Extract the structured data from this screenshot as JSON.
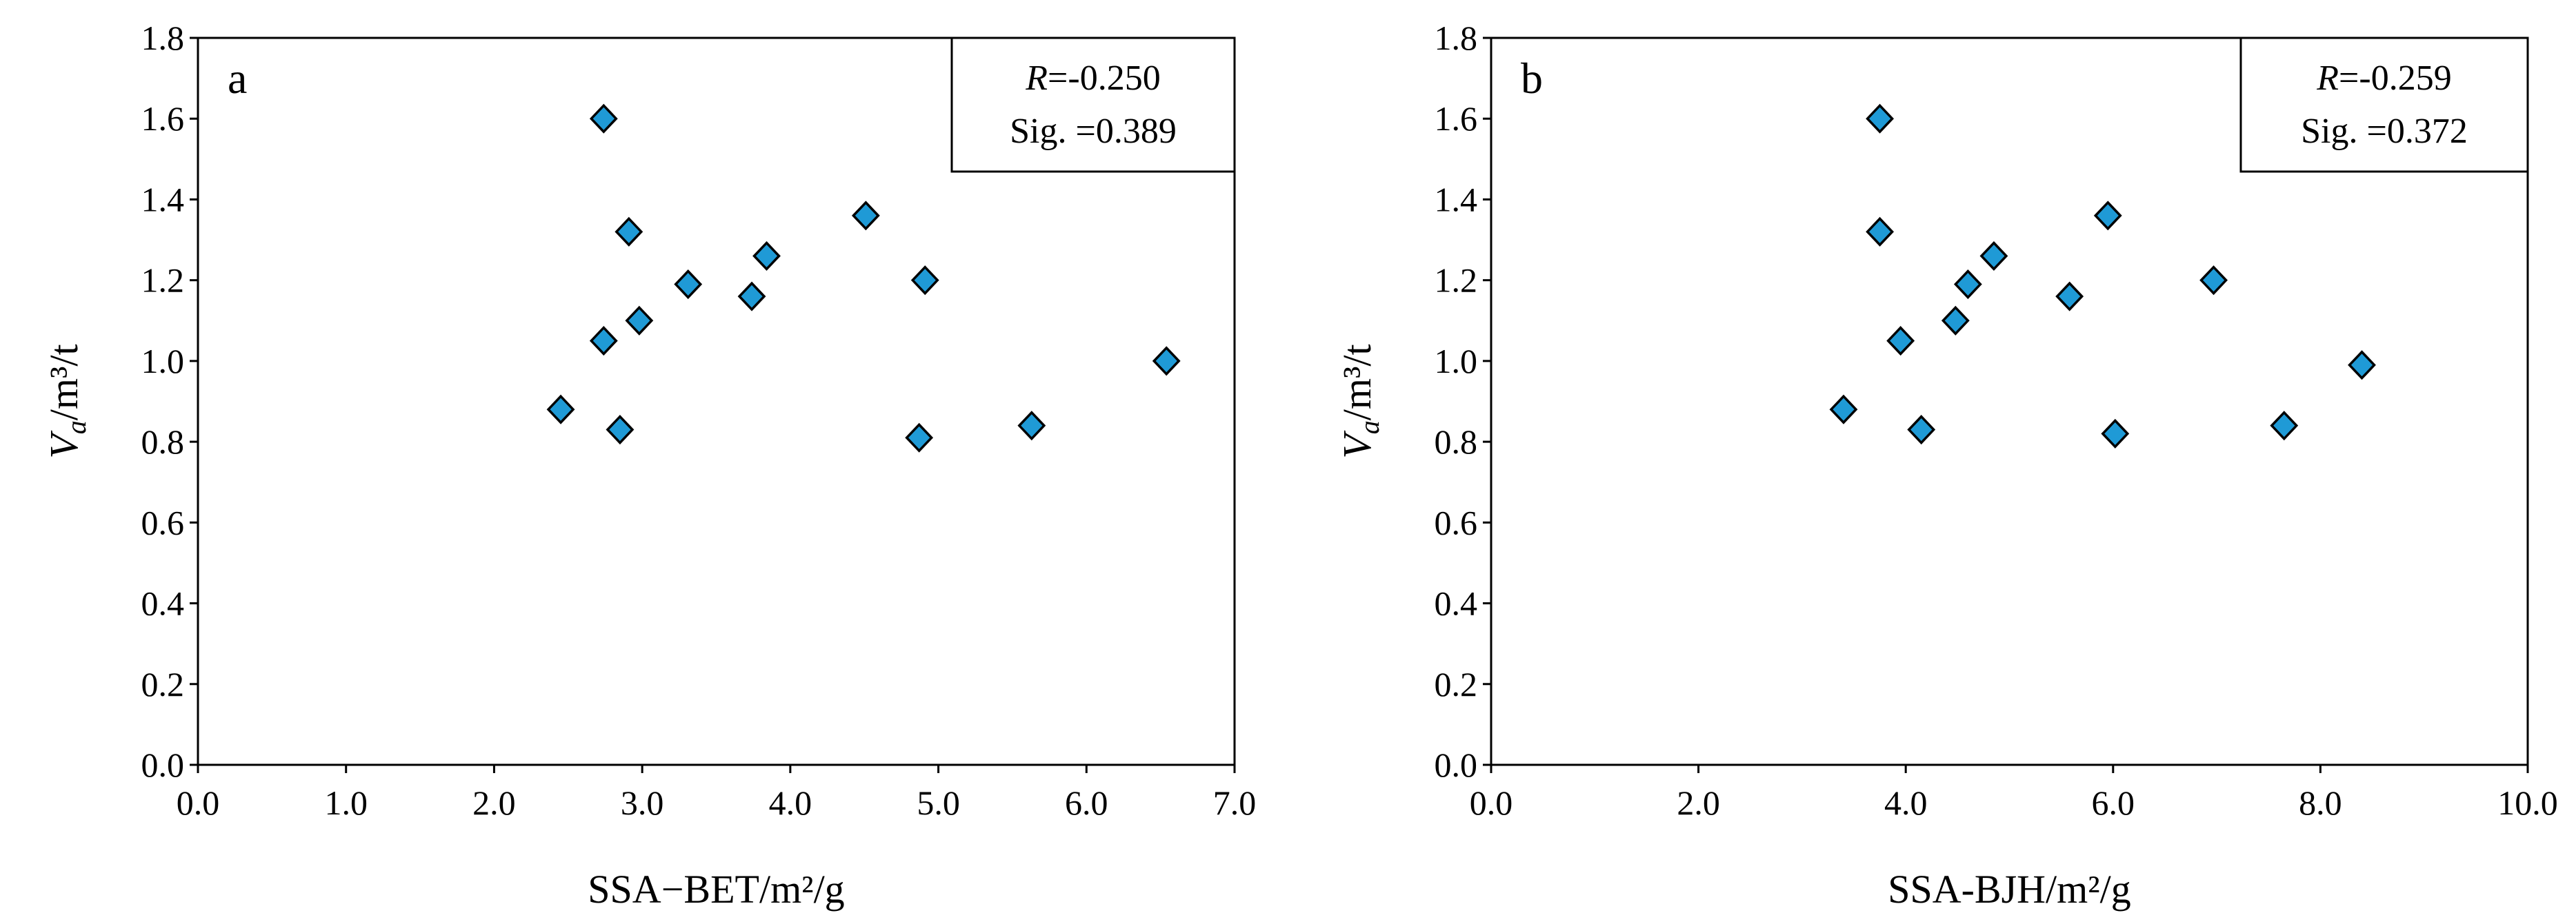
{
  "chart_data": [
    {
      "type": "scatter",
      "panel_label": "a",
      "xlabel": "SSA−BET/m²/g",
      "ylabel_main": "V",
      "ylabel_sub": "a",
      "ylabel_unit": "/m³/t",
      "xlim": [
        0,
        7
      ],
      "ylim": [
        0,
        1.8
      ],
      "xticks": [
        "0.0",
        "1.0",
        "2.0",
        "3.0",
        "4.0",
        "5.0",
        "6.0",
        "7.0"
      ],
      "yticks": [
        "0.0",
        "0.2",
        "0.4",
        "0.6",
        "0.8",
        "1.0",
        "1.2",
        "1.4",
        "1.6",
        "1.8"
      ],
      "grid": false,
      "marker": "diamond",
      "marker_color": "#1f9ad6",
      "stats": {
        "r_label": "R",
        "r_value": "=-0.250",
        "sig": "Sig. =0.389"
      },
      "points": [
        {
          "x": 2.45,
          "y": 0.88
        },
        {
          "x": 2.74,
          "y": 1.6
        },
        {
          "x": 2.74,
          "y": 1.05
        },
        {
          "x": 2.85,
          "y": 0.83
        },
        {
          "x": 2.91,
          "y": 1.32
        },
        {
          "x": 2.98,
          "y": 1.1
        },
        {
          "x": 3.31,
          "y": 1.19
        },
        {
          "x": 3.74,
          "y": 1.16
        },
        {
          "x": 3.84,
          "y": 1.26
        },
        {
          "x": 4.51,
          "y": 1.36
        },
        {
          "x": 4.87,
          "y": 0.81
        },
        {
          "x": 4.91,
          "y": 1.2
        },
        {
          "x": 5.63,
          "y": 0.84
        },
        {
          "x": 6.54,
          "y": 1.0
        }
      ]
    },
    {
      "type": "scatter",
      "panel_label": "b",
      "xlabel": "SSA-BJH/m²/g",
      "ylabel_main": "V",
      "ylabel_sub": "a",
      "ylabel_unit": "/m³/t",
      "xlim": [
        0,
        10
      ],
      "ylim": [
        0,
        1.8
      ],
      "xticks": [
        "0.0",
        "2.0",
        "4.0",
        "6.0",
        "8.0",
        "10.0"
      ],
      "yticks": [
        "0.0",
        "0.2",
        "0.4",
        "0.6",
        "0.8",
        "1.0",
        "1.2",
        "1.4",
        "1.6",
        "1.8"
      ],
      "grid": false,
      "marker": "diamond",
      "marker_color": "#1f9ad6",
      "stats": {
        "r_label": "R",
        "r_value": "=-0.259",
        "sig": "Sig. =0.372"
      },
      "points": [
        {
          "x": 3.4,
          "y": 0.88
        },
        {
          "x": 3.75,
          "y": 1.6
        },
        {
          "x": 3.75,
          "y": 1.32
        },
        {
          "x": 3.95,
          "y": 1.05
        },
        {
          "x": 4.15,
          "y": 0.83
        },
        {
          "x": 4.48,
          "y": 1.1
        },
        {
          "x": 4.6,
          "y": 1.19
        },
        {
          "x": 4.85,
          "y": 1.26
        },
        {
          "x": 5.58,
          "y": 1.16
        },
        {
          "x": 5.95,
          "y": 1.36
        },
        {
          "x": 6.02,
          "y": 0.82
        },
        {
          "x": 6.97,
          "y": 1.2
        },
        {
          "x": 7.65,
          "y": 0.84
        },
        {
          "x": 8.4,
          "y": 0.99
        }
      ]
    }
  ]
}
